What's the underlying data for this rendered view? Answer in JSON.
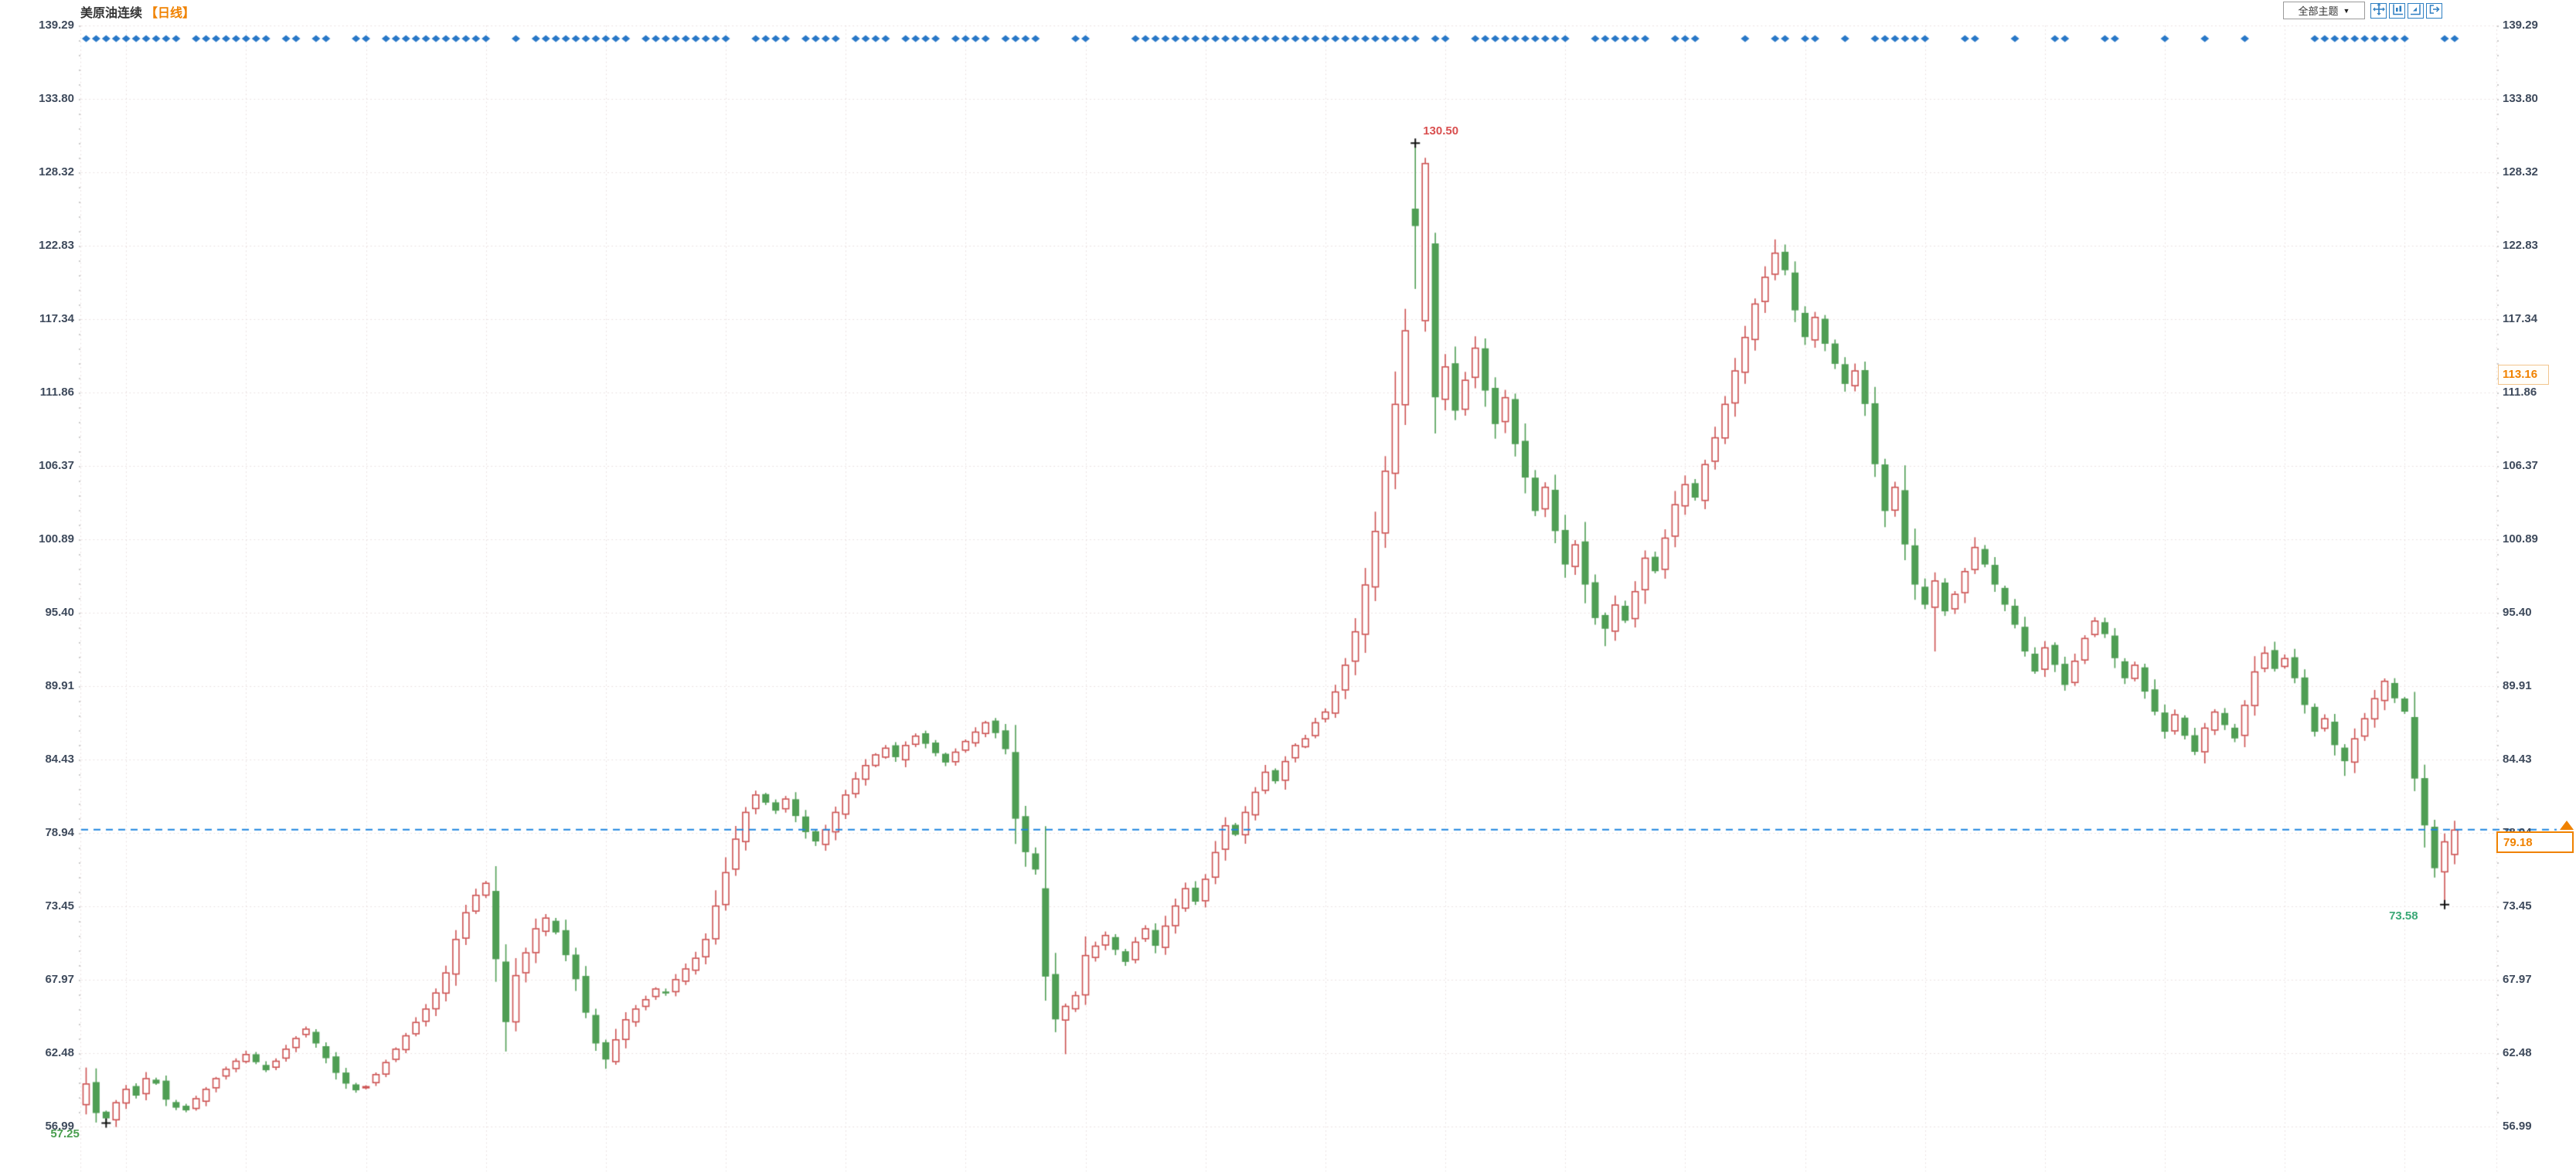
{
  "header": {
    "title": "美原油连续",
    "period_label": "【日线】"
  },
  "toolbar": {
    "theme_dropdown": "全部主题",
    "dropdown_arrow": "▼",
    "buttons": [
      {
        "name": "crosshair"
      },
      {
        "name": "left-axis-chart"
      },
      {
        "name": "right-axis-chart"
      },
      {
        "name": "export"
      }
    ]
  },
  "chart_data": {
    "type": "candlestick",
    "title": "美原油连续",
    "period": "日线",
    "ylim": [
      56.99,
      139.29
    ],
    "y_ticks": [
      139.29,
      133.8,
      128.32,
      122.83,
      117.34,
      111.86,
      106.37,
      100.89,
      95.4,
      89.91,
      84.43,
      78.94,
      73.45,
      67.97,
      62.48,
      56.99
    ],
    "grid": "dotted",
    "closes": [
      60.2,
      58.0,
      57.6,
      58.8,
      59.8,
      59.3,
      60.6,
      60.2,
      59.0,
      58.4,
      58.2,
      59.1,
      59.8,
      60.6,
      61.3,
      61.9,
      62.4,
      61.8,
      61.2,
      61.9,
      62.8,
      63.6,
      64.3,
      63.2,
      62.1,
      61.0,
      60.2,
      59.7,
      60.0,
      60.9,
      61.8,
      62.8,
      63.8,
      64.8,
      65.8,
      67.0,
      68.5,
      71.0,
      73.0,
      74.3,
      75.2,
      69.5,
      64.8,
      68.3,
      70.0,
      71.8,
      72.6,
      71.5,
      69.8,
      68.0,
      65.5,
      63.2,
      62.0,
      63.5,
      65.0,
      65.8,
      66.5,
      67.3,
      67.0,
      68.0,
      68.8,
      69.6,
      71.0,
      73.5,
      76.0,
      78.5,
      80.5,
      81.8,
      81.2,
      80.6,
      81.5,
      80.2,
      79.0,
      78.3,
      79.2,
      80.5,
      81.8,
      83.0,
      84.0,
      84.8,
      85.3,
      84.6,
      85.5,
      86.2,
      85.6,
      84.9,
      84.2,
      85.0,
      85.8,
      86.5,
      87.2,
      86.4,
      85.2,
      80.0,
      77.5,
      76.2,
      68.2,
      65.0,
      66.0,
      66.8,
      69.8,
      70.5,
      71.3,
      70.2,
      69.3,
      70.8,
      71.8,
      70.5,
      72.0,
      73.5,
      74.8,
      73.8,
      75.5,
      77.5,
      79.5,
      78.8,
      80.5,
      82.0,
      83.5,
      82.8,
      84.3,
      85.5,
      86.0,
      87.2,
      88.0,
      89.5,
      91.5,
      94.0,
      97.5,
      101.5,
      106.0,
      111.0,
      116.5,
      124.3,
      129.0,
      111.5,
      113.8,
      110.5,
      112.8,
      115.2,
      112.0,
      109.5,
      111.5,
      108.0,
      105.5,
      103.0,
      104.8,
      101.5,
      99.0,
      100.5,
      97.5,
      95.0,
      94.2,
      96.0,
      94.8,
      97.0,
      99.5,
      98.5,
      101.0,
      103.5,
      105.0,
      104.0,
      106.5,
      108.5,
      111.0,
      113.5,
      116.0,
      118.5,
      120.5,
      122.3,
      121.0,
      118.0,
      116.0,
      117.5,
      115.5,
      114.0,
      112.5,
      113.5,
      111.0,
      106.5,
      103.0,
      104.8,
      100.5,
      97.5,
      96.0,
      97.8,
      95.5,
      96.8,
      98.5,
      100.3,
      99.0,
      97.5,
      96.0,
      94.5,
      92.5,
      91.0,
      92.8,
      91.5,
      90.0,
      91.8,
      93.5,
      94.8,
      93.8,
      92.0,
      90.5,
      91.5,
      89.5,
      88.0,
      86.5,
      87.8,
      86.2,
      85.0,
      86.8,
      88.0,
      87.0,
      86.0,
      88.5,
      91.0,
      92.4,
      91.2,
      92.0,
      90.5,
      88.5,
      86.5,
      87.5,
      85.5,
      84.3,
      86.0,
      87.5,
      89.0,
      90.3,
      89.0,
      88.0,
      83.0,
      79.5,
      76.3,
      78.3,
      79.18
    ],
    "overrides": {
      "0": {
        "o": 58.6,
        "h": 61.4,
        "l": 57.9
      },
      "2": {
        "o": 58.1,
        "l": 57.25
      },
      "41": {
        "o": 74.6
      },
      "42": {
        "l": 62.6
      },
      "52": {
        "l": 61.3
      },
      "96": {
        "o": 74.8,
        "l": 66.4
      },
      "98": {
        "l": 62.4
      },
      "133": {
        "o": 125.6,
        "h": 130.5,
        "l": 119.6
      },
      "134": {
        "o": 117.2,
        "h": 129.4,
        "l": 116.4
      },
      "135": {
        "o": 123.0,
        "h": 123.8,
        "l": 108.8
      },
      "152": {
        "l": 92.9
      },
      "169": {
        "h": 123.3
      },
      "185": {
        "l": 92.5
      },
      "226": {
        "l": 83.2
      },
      "233": {
        "o": 87.6
      },
      "235": {
        "o": 79.4,
        "l": 75.6
      },
      "236": {
        "o": 76.0,
        "h": 78.9,
        "l": 73.58
      },
      "237": {
        "o": 77.3,
        "h": 79.85,
        "l": 76.6
      }
    },
    "annotations": [
      {
        "label": "130.50",
        "type": "high",
        "index": 133,
        "price": 130.5,
        "color": "#d94f4f"
      },
      {
        "label": "57.25",
        "type": "low",
        "index": 2,
        "price": 57.25,
        "color": "#4a9e4f"
      },
      {
        "label": "73.58",
        "type": "low",
        "index": 236,
        "price": 73.58,
        "color": "#3aa876"
      }
    ],
    "last_price": {
      "value": "79.18",
      "price": 79.18
    },
    "side_label": {
      "value": "113.16",
      "price": 113.16
    },
    "top_marker_groups": [
      [
        0,
        10
      ],
      [
        11,
        8
      ],
      [
        20,
        2
      ],
      [
        23,
        2
      ],
      [
        27,
        2
      ],
      [
        30,
        11
      ],
      [
        43,
        1
      ],
      [
        45,
        10
      ],
      [
        56,
        9
      ],
      [
        67,
        4
      ],
      [
        72,
        4
      ],
      [
        77,
        4
      ],
      [
        82,
        4
      ],
      [
        87,
        4
      ],
      [
        92,
        4
      ],
      [
        99,
        2
      ],
      [
        105,
        29
      ],
      [
        135,
        2
      ],
      [
        139,
        10
      ],
      [
        151,
        6
      ],
      [
        159,
        3
      ],
      [
        166,
        1
      ],
      [
        169,
        2
      ],
      [
        172,
        2
      ],
      [
        176,
        1
      ],
      [
        179,
        6
      ],
      [
        188,
        2
      ],
      [
        193,
        1
      ],
      [
        197,
        2
      ],
      [
        202,
        2
      ],
      [
        208,
        1
      ],
      [
        212,
        1
      ],
      [
        216,
        1
      ],
      [
        223,
        10
      ],
      [
        236,
        2
      ]
    ],
    "colors": {
      "up": "#cd5252",
      "down": "#4f9e54",
      "dash_line": "#1f86e0",
      "dot_marker": "#2878c8",
      "grid": "#e9dede",
      "axis_text": "#3e4a5c",
      "accent_orange": "#f08200",
      "marker_cross": "#111111"
    },
    "legend_position": "none"
  }
}
